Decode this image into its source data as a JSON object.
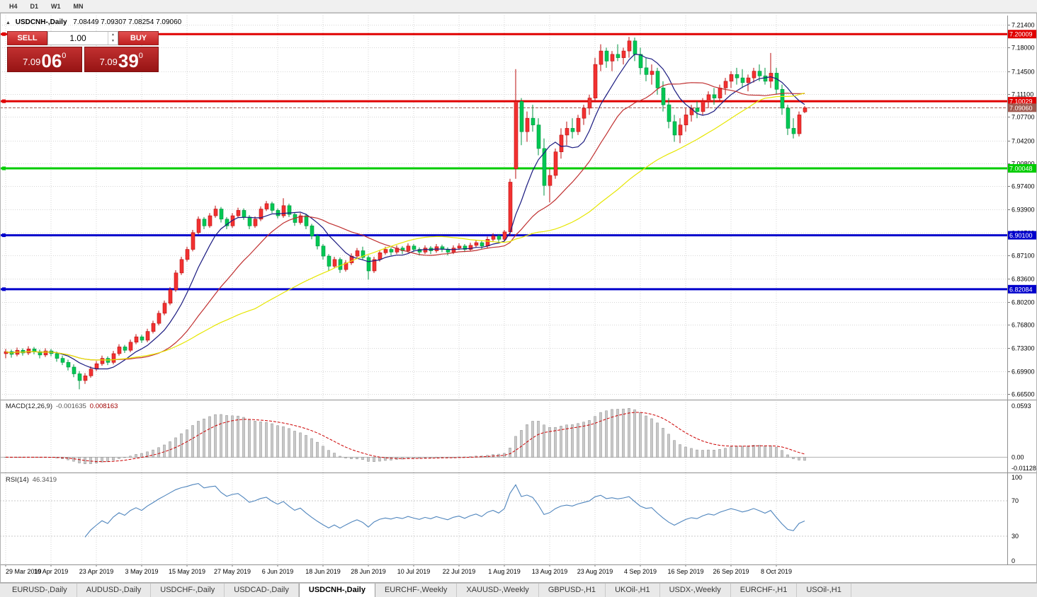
{
  "toolbar": {
    "timeframes": [
      "H4",
      "D1",
      "W1",
      "MN"
    ]
  },
  "chart": {
    "title_symbol": "USDCNH-,Daily",
    "title_ohlc": "7.08449 7.09307 7.08254 7.09060"
  },
  "one_click": {
    "sell_label": "SELL",
    "buy_label": "BUY",
    "volume": "1.00",
    "sell_price_main": "7.09",
    "sell_price_big": "06",
    "sell_price_sup": "0",
    "buy_price_main": "7.09",
    "buy_price_big": "39",
    "buy_price_sup": "0"
  },
  "indicators": {
    "macd": {
      "label": "MACD(12,26,9)",
      "value_main": "-0.001635",
      "value_signal": "0.008163",
      "axis_max": "0.0593",
      "axis_zero": "0.00",
      "axis_min": "-0.011289",
      "fast": 12,
      "slow": 26,
      "signal": 9
    },
    "rsi": {
      "label": "RSI(14)",
      "value": "46.3419",
      "period": 14,
      "axis_labels": [
        "100",
        "70",
        "30",
        "0"
      ]
    }
  },
  "chart_data": {
    "type": "candlestick",
    "symbol": "USDCNH-",
    "timeframe": "Daily",
    "price_range": {
      "max": 7.214,
      "min": 6.665
    },
    "y_axis_ticks": [
      "7.21400",
      "7.18000",
      "7.14500",
      "7.11100",
      "7.07700",
      "7.04200",
      "7.00800",
      "6.97400",
      "6.93900",
      "6.90500",
      "6.87100",
      "6.83600",
      "6.80200",
      "6.76800",
      "6.73300",
      "6.69900",
      "6.66500"
    ],
    "x_axis_labels": [
      {
        "index": 0,
        "label": "29 Mar 2019"
      },
      {
        "index": 8,
        "label": "10 Apr 2019"
      },
      {
        "index": 16,
        "label": "23 Apr 2019"
      },
      {
        "index": 24,
        "label": "3 May 2019"
      },
      {
        "index": 32,
        "label": "15 May 2019"
      },
      {
        "index": 40,
        "label": "27 May 2019"
      },
      {
        "index": 48,
        "label": "6 Jun 2019"
      },
      {
        "index": 56,
        "label": "18 Jun 2019"
      },
      {
        "index": 64,
        "label": "28 Jun 2019"
      },
      {
        "index": 72,
        "label": "10 Jul 2019"
      },
      {
        "index": 80,
        "label": "22 Jul 2019"
      },
      {
        "index": 88,
        "label": "1 Aug 2019"
      },
      {
        "index": 96,
        "label": "13 Aug 2019"
      },
      {
        "index": 104,
        "label": "23 Aug 2019"
      },
      {
        "index": 112,
        "label": "4 Sep 2019"
      },
      {
        "index": 120,
        "label": "16 Sep 2019"
      },
      {
        "index": 128,
        "label": "26 Sep 2019"
      },
      {
        "index": 136,
        "label": "8 Oct 2019"
      }
    ],
    "levels": [
      {
        "price": 7.20009,
        "label": "7.20009",
        "color": "#e00000"
      },
      {
        "price": 7.10029,
        "label": "7.10029",
        "color": "#e00000"
      },
      {
        "price": 7.00048,
        "label": "7.00048",
        "color": "#00cc00"
      },
      {
        "price": 6.901,
        "label": "6.90100",
        "color": "#0000cc"
      },
      {
        "price": 6.82084,
        "label": "6.82084",
        "color": "#0000cc"
      }
    ],
    "bid": {
      "price": 7.0906,
      "label": "7.09060",
      "color": "#a05a50"
    },
    "colors": {
      "up": "#f23131",
      "up_border": "#bb0f0f",
      "down": "#00c853",
      "down_border": "#009440",
      "ma_fast": "#1a1a80",
      "ma_mid": "#c03030",
      "ma_slow": "#e6e600",
      "macd_hist": "#c9c9c9",
      "macd_hist_border": "#8a8a8a",
      "macd_signal": "#cc0000",
      "rsi": "#4f85bd",
      "grid": "#d6d6d6",
      "level_label_text": "#ffffff"
    },
    "moving_averages": [
      {
        "period": 8,
        "color_key": "ma_fast"
      },
      {
        "period": 20,
        "color_key": "ma_mid"
      },
      {
        "period": 45,
        "color_key": "ma_slow"
      }
    ],
    "ohlc": [
      [
        6.725,
        6.732,
        6.718,
        6.728
      ],
      [
        6.728,
        6.731,
        6.719,
        6.724
      ],
      [
        6.724,
        6.734,
        6.721,
        6.73
      ],
      [
        6.73,
        6.733,
        6.722,
        6.726
      ],
      [
        6.726,
        6.736,
        6.723,
        6.732
      ],
      [
        6.732,
        6.735,
        6.724,
        6.728
      ],
      [
        6.728,
        6.731,
        6.718,
        6.723
      ],
      [
        6.723,
        6.733,
        6.72,
        6.729
      ],
      [
        6.729,
        6.732,
        6.721,
        6.725
      ],
      [
        6.725,
        6.728,
        6.713,
        6.718
      ],
      [
        6.718,
        6.722,
        6.708,
        6.712
      ],
      [
        6.712,
        6.716,
        6.7,
        6.705
      ],
      [
        6.705,
        6.709,
        6.69,
        6.695
      ],
      [
        6.695,
        6.699,
        6.672,
        6.685
      ],
      [
        6.685,
        6.696,
        6.68,
        6.692
      ],
      [
        6.692,
        6.706,
        6.689,
        6.702
      ],
      [
        6.702,
        6.714,
        6.699,
        6.71
      ],
      [
        6.71,
        6.722,
        6.707,
        6.718
      ],
      [
        6.718,
        6.721,
        6.708,
        6.712
      ],
      [
        6.712,
        6.729,
        6.709,
        6.725
      ],
      [
        6.725,
        6.739,
        6.722,
        6.735
      ],
      [
        6.735,
        6.738,
        6.726,
        6.73
      ],
      [
        6.73,
        6.746,
        6.727,
        6.742
      ],
      [
        6.742,
        6.754,
        6.739,
        6.75
      ],
      [
        6.75,
        6.753,
        6.741,
        6.745
      ],
      [
        6.745,
        6.762,
        6.742,
        6.758
      ],
      [
        6.758,
        6.774,
        6.755,
        6.77
      ],
      [
        6.77,
        6.789,
        6.767,
        6.785
      ],
      [
        6.785,
        6.804,
        6.782,
        6.8
      ],
      [
        6.8,
        6.824,
        6.797,
        6.82
      ],
      [
        6.82,
        6.849,
        6.817,
        6.845
      ],
      [
        6.845,
        6.869,
        6.842,
        6.865
      ],
      [
        6.865,
        6.884,
        6.862,
        6.88
      ],
      [
        6.88,
        6.909,
        6.877,
        6.905
      ],
      [
        6.905,
        6.929,
        6.902,
        6.925
      ],
      [
        6.925,
        6.928,
        6.91,
        6.915
      ],
      [
        6.915,
        6.934,
        6.912,
        6.93
      ],
      [
        6.93,
        6.945,
        6.927,
        6.94
      ],
      [
        6.94,
        6.943,
        6.92,
        6.925
      ],
      [
        6.925,
        6.928,
        6.91,
        6.915
      ],
      [
        6.915,
        6.934,
        6.912,
        6.93
      ],
      [
        6.93,
        6.942,
        6.927,
        6.938
      ],
      [
        6.938,
        6.941,
        6.924,
        6.928
      ],
      [
        6.928,
        6.931,
        6.91,
        6.915
      ],
      [
        6.915,
        6.929,
        6.912,
        6.925
      ],
      [
        6.925,
        6.944,
        6.922,
        6.94
      ],
      [
        6.94,
        6.952,
        6.937,
        6.948
      ],
      [
        6.948,
        6.951,
        6.934,
        6.938
      ],
      [
        6.938,
        6.941,
        6.926,
        6.93
      ],
      [
        6.93,
        6.956,
        6.927,
        6.945
      ],
      [
        6.945,
        6.948,
        6.928,
        6.932
      ],
      [
        6.932,
        6.935,
        6.915,
        6.92
      ],
      [
        6.92,
        6.934,
        6.917,
        6.93
      ],
      [
        6.93,
        6.933,
        6.91,
        6.915
      ],
      [
        6.915,
        6.918,
        6.895,
        6.9
      ],
      [
        6.9,
        6.903,
        6.88,
        6.885
      ],
      [
        6.885,
        6.888,
        6.865,
        6.87
      ],
      [
        6.87,
        6.873,
        6.848,
        6.855
      ],
      [
        6.855,
        6.869,
        6.852,
        6.865
      ],
      [
        6.865,
        6.868,
        6.845,
        6.85
      ],
      [
        6.85,
        6.864,
        6.847,
        6.86
      ],
      [
        6.86,
        6.874,
        6.857,
        6.87
      ],
      [
        6.87,
        6.882,
        6.867,
        6.878
      ],
      [
        6.878,
        6.884,
        6.864,
        6.868
      ],
      [
        6.868,
        6.871,
        6.835,
        6.848
      ],
      [
        6.848,
        6.869,
        6.845,
        6.865
      ],
      [
        6.865,
        6.879,
        6.862,
        6.875
      ],
      [
        6.875,
        6.884,
        6.872,
        6.88
      ],
      [
        6.88,
        6.883,
        6.871,
        6.876
      ],
      [
        6.876,
        6.886,
        6.873,
        6.882
      ],
      [
        6.882,
        6.885,
        6.873,
        6.878
      ],
      [
        6.878,
        6.889,
        6.875,
        6.885
      ],
      [
        6.885,
        6.888,
        6.876,
        6.88
      ],
      [
        6.88,
        6.883,
        6.871,
        6.876
      ],
      [
        6.876,
        6.886,
        6.873,
        6.882
      ],
      [
        6.882,
        6.885,
        6.873,
        6.878
      ],
      [
        6.878,
        6.888,
        6.875,
        6.884
      ],
      [
        6.884,
        6.887,
        6.876,
        6.88
      ],
      [
        6.88,
        6.883,
        6.871,
        6.876
      ],
      [
        6.876,
        6.886,
        6.873,
        6.882
      ],
      [
        6.882,
        6.889,
        6.879,
        6.885
      ],
      [
        6.885,
        6.888,
        6.876,
        6.88
      ],
      [
        6.88,
        6.89,
        6.877,
        6.886
      ],
      [
        6.886,
        6.894,
        6.883,
        6.89
      ],
      [
        6.89,
        6.893,
        6.881,
        6.885
      ],
      [
        6.885,
        6.899,
        6.882,
        6.895
      ],
      [
        6.895,
        6.904,
        6.892,
        6.9
      ],
      [
        6.9,
        6.903,
        6.891,
        6.895
      ],
      [
        6.895,
        6.909,
        6.892,
        6.906
      ],
      [
        6.906,
        6.985,
        6.9,
        6.98
      ],
      [
        7.0,
        7.148,
        6.985,
        7.1
      ],
      [
        7.1,
        7.105,
        7.035,
        7.055
      ],
      [
        7.055,
        7.085,
        7.04,
        7.075
      ],
      [
        7.075,
        7.095,
        7.055,
        7.065
      ],
      [
        7.065,
        7.075,
        7.02,
        7.03
      ],
      [
        7.03,
        7.045,
        6.96,
        6.975
      ],
      [
        6.975,
        7.0,
        6.95,
        6.99
      ],
      [
        6.99,
        7.03,
        6.985,
        7.025
      ],
      [
        7.025,
        7.06,
        7.015,
        7.05
      ],
      [
        7.05,
        7.07,
        7.035,
        7.06
      ],
      [
        7.06,
        7.075,
        7.045,
        7.055
      ],
      [
        7.055,
        7.08,
        7.05,
        7.075
      ],
      [
        7.075,
        7.095,
        7.065,
        7.09
      ],
      [
        7.09,
        7.11,
        7.08,
        7.105
      ],
      [
        7.105,
        7.165,
        7.1,
        7.155
      ],
      [
        7.155,
        7.185,
        7.145,
        7.175
      ],
      [
        7.175,
        7.18,
        7.15,
        7.16
      ],
      [
        7.16,
        7.175,
        7.145,
        7.17
      ],
      [
        7.17,
        7.185,
        7.16,
        7.165
      ],
      [
        7.165,
        7.18,
        7.155,
        7.175
      ],
      [
        7.175,
        7.196,
        7.165,
        7.19
      ],
      [
        7.19,
        7.195,
        7.16,
        7.17
      ],
      [
        7.17,
        7.18,
        7.14,
        7.15
      ],
      [
        7.15,
        7.165,
        7.13,
        7.14
      ],
      [
        7.14,
        7.155,
        7.125,
        7.145
      ],
      [
        7.145,
        7.15,
        7.11,
        7.12
      ],
      [
        7.12,
        7.13,
        7.085,
        7.095
      ],
      [
        7.095,
        7.105,
        7.06,
        7.07
      ],
      [
        7.07,
        7.08,
        7.04,
        7.05
      ],
      [
        7.05,
        7.075,
        7.038,
        7.065
      ],
      [
        7.065,
        7.09,
        7.055,
        7.08
      ],
      [
        7.08,
        7.095,
        7.07,
        7.09
      ],
      [
        7.09,
        7.1,
        7.075,
        7.085
      ],
      [
        7.085,
        7.105,
        7.08,
        7.1
      ],
      [
        7.1,
        7.115,
        7.09,
        7.11
      ],
      [
        7.11,
        7.12,
        7.095,
        7.105
      ],
      [
        7.105,
        7.125,
        7.1,
        7.12
      ],
      [
        7.12,
        7.135,
        7.11,
        7.13
      ],
      [
        7.13,
        7.145,
        7.12,
        7.14
      ],
      [
        7.14,
        7.15,
        7.125,
        7.135
      ],
      [
        7.135,
        7.148,
        7.12,
        7.128
      ],
      [
        7.128,
        7.14,
        7.115,
        7.135
      ],
      [
        7.135,
        7.15,
        7.128,
        7.145
      ],
      [
        7.145,
        7.155,
        7.13,
        7.138
      ],
      [
        7.138,
        7.15,
        7.125,
        7.13
      ],
      [
        7.13,
        7.172,
        7.12,
        7.142
      ],
      [
        7.142,
        7.15,
        7.11,
        7.118
      ],
      [
        7.118,
        7.125,
        7.08,
        7.09
      ],
      [
        7.09,
        7.095,
        7.05,
        7.06
      ],
      [
        7.06,
        7.075,
        7.045,
        7.052
      ],
      [
        7.052,
        7.085,
        7.048,
        7.08
      ],
      [
        7.08449,
        7.09307,
        7.08254,
        7.0906
      ]
    ]
  },
  "tabs": [
    {
      "label": "EURUSD-,Daily",
      "active": false
    },
    {
      "label": "AUDUSD-,Daily",
      "active": false
    },
    {
      "label": "USDCHF-,Daily",
      "active": false
    },
    {
      "label": "USDCAD-,Daily",
      "active": false
    },
    {
      "label": "USDCNH-,Daily",
      "active": true
    },
    {
      "label": "EURCHF-,Weekly",
      "active": false
    },
    {
      "label": "XAUUSD-,Weekly",
      "active": false
    },
    {
      "label": "GBPUSD-,H1",
      "active": false
    },
    {
      "label": "UKOil-,H1",
      "active": false
    },
    {
      "label": "USDX-,Weekly",
      "active": false
    },
    {
      "label": "EURCHF-,H1",
      "active": false
    },
    {
      "label": "USOil-,H1",
      "active": false
    }
  ]
}
